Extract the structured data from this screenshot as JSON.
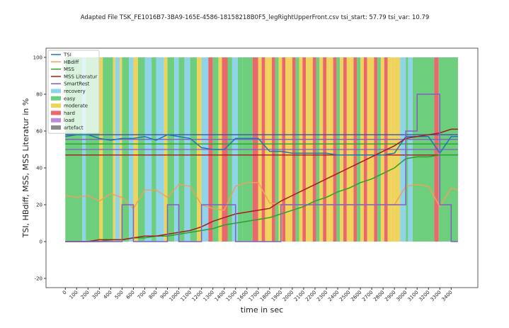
{
  "chart_data": {
    "type": "line",
    "title": "Adapted File TSK_FE1016B7-3BA9-165E-4586-18158218B0F5_legRightUpperFront.csv tsi_start: 57.79 tsi_var: 10.79",
    "x_label": "time in sec",
    "y_label": "TSI, HBdiff, MSS, MSS Literatur in %",
    "xlim": [
      -170,
      3635
    ],
    "ylim": [
      -25,
      105
    ],
    "xticks": [
      0,
      100,
      200,
      300,
      400,
      500,
      600,
      700,
      800,
      900,
      1000,
      1100,
      1200,
      1300,
      1400,
      1500,
      1600,
      1700,
      1800,
      1900,
      2000,
      2100,
      2200,
      2300,
      2400,
      2500,
      2600,
      2700,
      2800,
      2900,
      3000,
      3100,
      3200,
      3300,
      3400
    ],
    "yticks": [
      -20,
      0,
      20,
      40,
      60,
      80,
      100
    ],
    "legend": "upper left",
    "x": [
      0,
      100,
      200,
      300,
      400,
      500,
      600,
      700,
      800,
      900,
      1000,
      1100,
      1200,
      1300,
      1400,
      1500,
      1600,
      1700,
      1800,
      1900,
      2000,
      2100,
      2200,
      2300,
      2400,
      2500,
      2600,
      2700,
      2800,
      2900,
      3000,
      3100,
      3200,
      3300,
      3400,
      3460
    ],
    "series": [
      {
        "name": "TSI",
        "color": "#1f77b4",
        "values": [
          57,
          58,
          58,
          56,
          55,
          56,
          56,
          57,
          55,
          58,
          57,
          56,
          51,
          50,
          50,
          56,
          56,
          56,
          49,
          49,
          48,
          48,
          48,
          48,
          47,
          47,
          47,
          47,
          47,
          48,
          57,
          57,
          57,
          48,
          57,
          57
        ]
      },
      {
        "name": "HBdiff",
        "color": "#f0a05a",
        "values": [
          25,
          24,
          25,
          22,
          26,
          24,
          18,
          28,
          28,
          24,
          31,
          30,
          20,
          18,
          17,
          30,
          32,
          32,
          21,
          20,
          20,
          20,
          20,
          20,
          20,
          20,
          20,
          20,
          20,
          20,
          30,
          31,
          30,
          19,
          29,
          28
        ]
      },
      {
        "name": "MSS",
        "color": "#2ca02c",
        "values": [
          0,
          0,
          0,
          0,
          1,
          1,
          2,
          2,
          3,
          3,
          4,
          5,
          6,
          7,
          9,
          10,
          11,
          12,
          13,
          15,
          17,
          19,
          22,
          24,
          27,
          29,
          32,
          34,
          37,
          40,
          45,
          46,
          46,
          47,
          47,
          47
        ]
      },
      {
        "name": "MSS Literatur",
        "color": "#a51c1c",
        "values": [
          0,
          0,
          0,
          1,
          1,
          1,
          2,
          3,
          3,
          4,
          5,
          6,
          8,
          11,
          13,
          15,
          16,
          17,
          18,
          22,
          25,
          28,
          31,
          34,
          37,
          40,
          43,
          46,
          49,
          52,
          56,
          57,
          58,
          59,
          61,
          61
        ]
      },
      {
        "name": "SmartRest",
        "color": "#8060c0",
        "step": "post",
        "values": [
          0,
          0,
          0,
          0,
          0,
          20,
          0,
          0,
          0,
          20,
          0,
          0,
          20,
          20,
          20,
          0,
          0,
          0,
          0,
          20,
          20,
          20,
          20,
          20,
          20,
          20,
          20,
          20,
          20,
          20,
          60,
          80,
          80,
          20,
          0,
          0
        ]
      }
    ],
    "hlines": [
      {
        "value": 58,
        "color": "#4050b0"
      },
      {
        "value": 55.5,
        "color": "#8060c0"
      },
      {
        "value": 53,
        "color": "#2ca02c"
      },
      {
        "value": 50,
        "color": "#8060c0"
      },
      {
        "value": 47,
        "color": "#a51c1c"
      }
    ],
    "zone_top": 100,
    "zone_classes": [
      {
        "name": "recovery",
        "color": "#8fd4e8"
      },
      {
        "name": "easy",
        "color": "#6dcf7d"
      },
      {
        "name": "moderate",
        "color": "#f0d35a"
      },
      {
        "name": "hard",
        "color": "#e8686c"
      },
      {
        "name": "load",
        "color": "#b98ade"
      },
      {
        "name": "artefact",
        "color": "#8c8c8c"
      }
    ],
    "zone_edges": [
      0,
      150,
      180,
      300,
      330,
      420,
      440,
      480,
      500,
      560,
      600,
      640,
      700,
      760,
      800,
      870,
      900,
      960,
      1000,
      1050,
      1100,
      1160,
      1200,
      1260,
      1300,
      1350,
      1380,
      1430,
      1470,
      1520,
      1560,
      1650,
      1700,
      1730,
      1760,
      1790,
      1820,
      1850,
      1880,
      1910,
      1940,
      1970,
      2000,
      2030,
      2060,
      2090,
      2120,
      2150,
      2180,
      2210,
      2240,
      2270,
      2300,
      2330,
      2360,
      2390,
      2420,
      2450,
      2480,
      2510,
      2540,
      2570,
      2600,
      2630,
      2660,
      2690,
      2720,
      2750,
      2780,
      2810,
      2840,
      2870,
      2900,
      2950,
      3000,
      3020,
      3060,
      3080,
      3250,
      3290,
      3460
    ],
    "zone_labels": [
      "easy",
      "recovery",
      "easy",
      "moderate",
      "easy",
      "moderate",
      "recovery",
      "moderate",
      "easy",
      "recovery",
      "moderate",
      "easy",
      "recovery",
      "easy",
      "recovery",
      "moderate",
      "easy",
      "recovery",
      "easy",
      "recovery",
      "easy",
      "moderate",
      "recovery",
      "hard",
      "easy",
      "moderate",
      "hard",
      "easy",
      "recovery",
      "easy",
      "easy",
      "hard",
      "moderate",
      "hard",
      "moderate",
      "moderate",
      "hard",
      "easy",
      "moderate",
      "hard",
      "moderate",
      "moderate",
      "hard",
      "easy",
      "moderate",
      "hard",
      "moderate",
      "moderate",
      "hard",
      "easy",
      "moderate",
      "hard",
      "moderate",
      "moderate",
      "hard",
      "easy",
      "moderate",
      "hard",
      "moderate",
      "moderate",
      "hard",
      "easy",
      "moderate",
      "hard",
      "moderate",
      "moderate",
      "hard",
      "easy",
      "moderate",
      "hard",
      "moderate",
      "moderate",
      "moderate",
      "recovery",
      "easy",
      "recovery",
      "easy",
      "easy",
      "hard",
      "easy"
    ]
  }
}
